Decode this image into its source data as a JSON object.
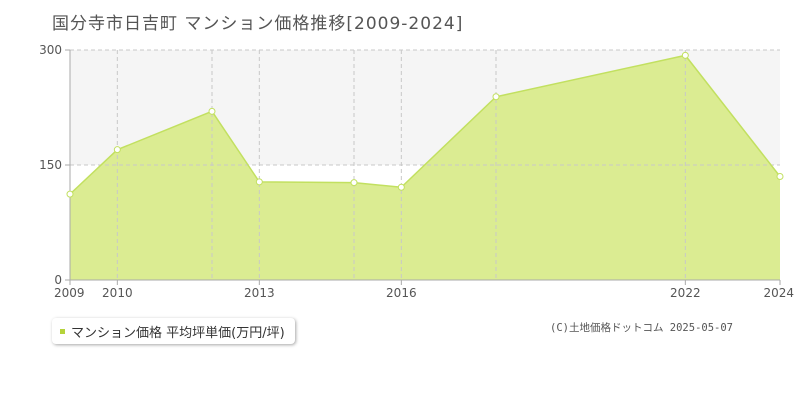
{
  "page_title": "国分寺市日吉町 マンション価格推移[2009-2024]",
  "copyright": "(C)土地価格ドットコム 2025-05-07",
  "colors": {
    "area_fill": "#dbec92",
    "line": "#c2e060",
    "marker_fill": "#ffffff",
    "grid": "#c8c8c8",
    "axis": "#aaaaaa",
    "legend_square": "#b5d33a",
    "band": "#f5f5f5"
  },
  "chart_data": {
    "type": "area",
    "title": "国分寺市日吉町 マンション価格推移[2009-2024]",
    "x": [
      2009,
      2010,
      2012,
      2013,
      2015,
      2016,
      2018,
      2022,
      2024
    ],
    "series": [
      {
        "name": "マンション価格 平均坪単価(万円/坪)",
        "values": [
          112,
          170,
          220,
          128,
          127,
          121,
          239,
          293,
          135
        ]
      }
    ],
    "xlim": [
      2009,
      2024
    ],
    "ylim": [
      0,
      300
    ],
    "x_ticks": [
      2009,
      2010,
      2013,
      2016,
      2022,
      2024
    ],
    "x_gridlines": [
      2010,
      2012,
      2013,
      2015,
      2016,
      2018,
      2022
    ],
    "y_ticks": [
      0,
      150,
      300
    ],
    "grid": true,
    "legend_position": "bottom-left"
  }
}
